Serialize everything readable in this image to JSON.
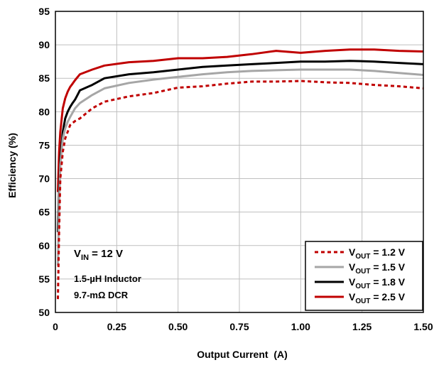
{
  "chart_data": {
    "type": "line",
    "xlabel": "Output Current  (A)",
    "ylabel": "Efficiency (%)",
    "xlim": [
      0,
      1.5
    ],
    "ylim": [
      50,
      95
    ],
    "x_ticks": [
      "0",
      "0.25",
      "0.50",
      "0.75",
      "1.00",
      "1.25",
      "1.50"
    ],
    "y_ticks": [
      "50",
      "55",
      "60",
      "65",
      "70",
      "75",
      "80",
      "85",
      "90",
      "95"
    ],
    "grid": true,
    "legend_position": "bottom-right",
    "annotation": {
      "vin_main": "V",
      "vin_sub": "IN",
      "vin_rest": " = 12 V",
      "line2": "1.5-µH Inductor",
      "line3": "9.7-mΩ DCR"
    },
    "series": [
      {
        "name_main": "V",
        "name_sub": "OUT",
        "name_rest": " = 1.2 V",
        "color": "#c00000",
        "dash": true,
        "x": [
          0.01,
          0.015,
          0.02,
          0.03,
          0.04,
          0.05,
          0.06,
          0.08,
          0.1,
          0.15,
          0.2,
          0.3,
          0.4,
          0.5,
          0.6,
          0.7,
          0.8,
          0.9,
          1.0,
          1.1,
          1.2,
          1.3,
          1.4,
          1.5
        ],
        "y": [
          52,
          62,
          70,
          74,
          76,
          77,
          78,
          78.6,
          79,
          80.5,
          81.5,
          82.3,
          82.8,
          83.6,
          83.8,
          84.2,
          84.5,
          84.5,
          84.6,
          84.4,
          84.3,
          84.0,
          83.8,
          83.5
        ]
      },
      {
        "name_main": "V",
        "name_sub": "OUT",
        "name_rest": " = 1.5 V",
        "color": "#a6a6a6",
        "dash": false,
        "x": [
          0.01,
          0.015,
          0.02,
          0.03,
          0.04,
          0.05,
          0.06,
          0.08,
          0.1,
          0.15,
          0.2,
          0.3,
          0.4,
          0.5,
          0.6,
          0.7,
          0.8,
          0.9,
          1.0,
          1.1,
          1.2,
          1.3,
          1.4,
          1.5
        ],
        "y": [
          57,
          66,
          72,
          76,
          77.5,
          78.5,
          79.2,
          80.5,
          81.3,
          82.5,
          83.5,
          84.3,
          84.8,
          85.2,
          85.6,
          85.9,
          86.1,
          86.2,
          86.3,
          86.3,
          86.3,
          86.1,
          85.8,
          85.5
        ]
      },
      {
        "name_main": "V",
        "name_sub": "OUT",
        "name_rest": " = 1.8 V",
        "color": "#000000",
        "dash": false,
        "x": [
          0.01,
          0.015,
          0.02,
          0.03,
          0.04,
          0.05,
          0.06,
          0.07,
          0.08,
          0.09,
          0.1,
          0.15,
          0.2,
          0.3,
          0.4,
          0.5,
          0.6,
          0.7,
          0.8,
          0.9,
          1.0,
          1.1,
          1.2,
          1.3,
          1.4,
          1.5
        ],
        "y": [
          62,
          68,
          73,
          77,
          79,
          80,
          80.7,
          81.3,
          81.8,
          82.5,
          83.2,
          84.0,
          85.0,
          85.6,
          85.9,
          86.3,
          86.7,
          86.9,
          87.1,
          87.3,
          87.5,
          87.5,
          87.6,
          87.5,
          87.3,
          87.1
        ]
      },
      {
        "name_main": "V",
        "name_sub": "OUT",
        "name_rest": " = 2.5 V",
        "color": "#c00000",
        "dash": false,
        "x": [
          0.01,
          0.015,
          0.02,
          0.03,
          0.04,
          0.05,
          0.06,
          0.07,
          0.08,
          0.1,
          0.15,
          0.2,
          0.3,
          0.4,
          0.5,
          0.6,
          0.7,
          0.8,
          0.9,
          1.0,
          1.1,
          1.2,
          1.3,
          1.4,
          1.5
        ],
        "y": [
          68,
          74,
          77,
          80.5,
          82,
          83,
          83.7,
          84.2,
          84.7,
          85.6,
          86.3,
          86.9,
          87.4,
          87.6,
          88.0,
          88.0,
          88.2,
          88.6,
          89.1,
          88.8,
          89.1,
          89.3,
          89.3,
          89.1,
          89.0
        ]
      }
    ]
  }
}
